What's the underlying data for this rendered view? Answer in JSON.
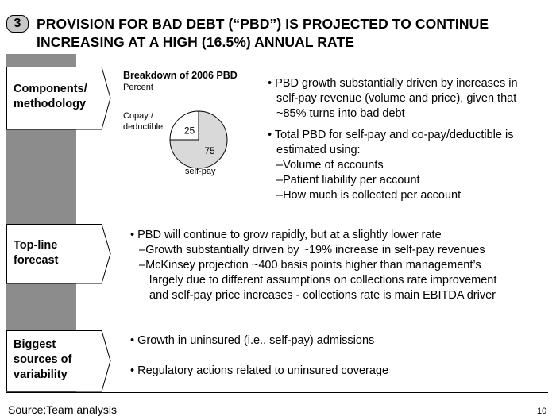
{
  "header": {
    "badge": "3",
    "title_line1": "PROVISION FOR BAD DEBT (“PBD”) IS PROJECTED TO CONTINUE",
    "title_line2": "INCREASING AT A HIGH (16.5%) ANNUAL RATE"
  },
  "sections": [
    {
      "label_line1": "Components/",
      "label_line2": "methodology"
    },
    {
      "label_line1": "Top-line",
      "label_line2": "forecast"
    },
    {
      "label_line1": "Biggest",
      "label_line2": "sources of",
      "label_line3": "variability"
    }
  ],
  "chart_data": {
    "type": "pie",
    "title": "Breakdown of 2006 PBD",
    "unit": "Percent",
    "categories": [
      "Copay / deductible",
      "self-pay"
    ],
    "values": [
      25,
      75
    ],
    "labels": {
      "copay_line1": "Copay /",
      "copay_line2": "deductible",
      "selfpay": "self-pay"
    },
    "colors": {
      "copay": "#ffffff",
      "selfpay": "#d9d9d9"
    }
  },
  "components": {
    "bullet1_line1": "PBD growth substantially driven by increases in",
    "bullet1_line2": "self-pay revenue (volume and price), given that",
    "bullet1_line3": "~85% turns into bad debt",
    "bullet2_line1": "Total PBD for self-pay and co-pay/deductible is",
    "bullet2_line2": "estimated using:",
    "sub1": "Volume of accounts",
    "sub2": "Patient liability per account",
    "sub3": "How much is collected per account"
  },
  "forecast": {
    "bullet1": "PBD will continue to grow rapidly, but at a slightly lower rate",
    "sub1": "Growth substantially driven by ~19% increase in self-pay revenues",
    "sub2_line1": "McKinsey projection ~400 basis points higher than management’s",
    "sub2_line2": "largely due to different assumptions on collections rate improvement",
    "sub2_line3": "and self-pay price increases  - collections rate is main EBITDA driver"
  },
  "variability": {
    "bullet1": "Growth in uninsured (i.e., self-pay) admissions",
    "bullet2": "Regulatory actions related to uninsured coverage"
  },
  "footer": {
    "source": "Source:Team analysis",
    "page": "10"
  }
}
